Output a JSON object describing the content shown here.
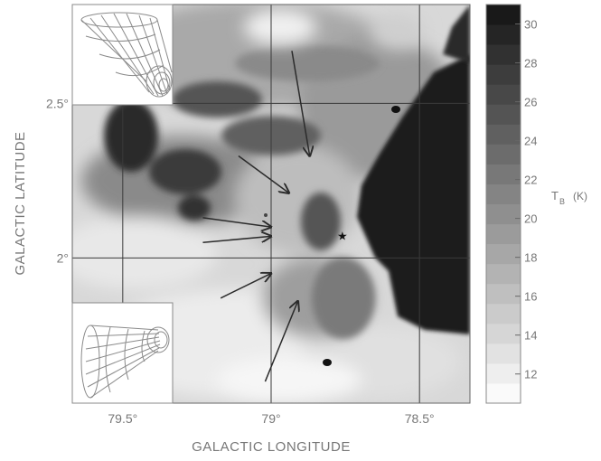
{
  "axes": {
    "xlabel": "GALACTIC LONGITUDE",
    "ylabel": "GALACTIC LATITUDE",
    "x_ticks": [
      {
        "value": 79.5,
        "label": "79.5°"
      },
      {
        "value": 79.0,
        "label": "79°"
      },
      {
        "value": 78.5,
        "label": "78.5°"
      }
    ],
    "y_ticks": [
      {
        "value": 2.5,
        "label": "2.5°"
      },
      {
        "value": 2.0,
        "label": "2°"
      }
    ],
    "xlim": [
      79.67,
      78.33
    ],
    "ylim": [
      1.53,
      2.82
    ]
  },
  "colorbar": {
    "label": "T",
    "label_sub": "B",
    "label_unit": "(K)",
    "ticks": [
      "30",
      "28",
      "26",
      "24",
      "22",
      "20",
      "18",
      "16",
      "14",
      "12"
    ],
    "range": [
      10.5,
      31
    ]
  },
  "markers": {
    "star": {
      "glyph": "★",
      "l": 78.76,
      "b": 2.07
    }
  },
  "arrows": [
    {
      "from": [
        78.93,
        2.67
      ],
      "to": [
        78.87,
        2.33
      ]
    },
    {
      "from": [
        79.11,
        2.33
      ],
      "to": [
        78.94,
        2.21
      ]
    },
    {
      "from": [
        79.23,
        2.13
      ],
      "to": [
        79.0,
        2.1
      ]
    },
    {
      "from": [
        79.23,
        2.05
      ],
      "to": [
        79.0,
        2.07
      ]
    },
    {
      "from": [
        79.17,
        1.87
      ],
      "to": [
        79.0,
        1.95
      ]
    },
    {
      "from": [
        79.02,
        1.6
      ],
      "to": [
        78.91,
        1.86
      ]
    }
  ],
  "colors": {
    "grid": "#3a3a3a",
    "arrow": "#2b2b2b",
    "frame": "#888888",
    "label": "#777777"
  },
  "insets": [
    {
      "name": "beam-inset-top",
      "orientation": "narrow-end-down"
    },
    {
      "name": "beam-inset-bottom",
      "orientation": "narrow-end-right"
    }
  ]
}
